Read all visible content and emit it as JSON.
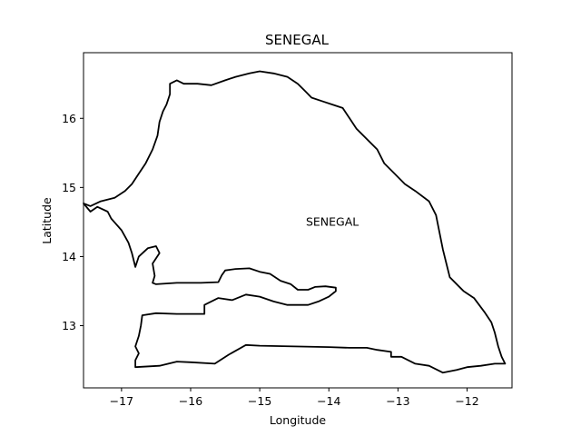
{
  "title": "SENEGAL",
  "map_label": "SENEGAL",
  "xlabel": "Longitude",
  "ylabel": "Latitude",
  "xlim": [
    -17.55,
    -11.35
  ],
  "ylim": [
    12.1,
    16.95
  ],
  "xticks": [
    {
      "value": -17,
      "label": "−17"
    },
    {
      "value": -16,
      "label": "−16"
    },
    {
      "value": -15,
      "label": "−15"
    },
    {
      "value": -14,
      "label": "−14"
    },
    {
      "value": -13,
      "label": "−13"
    },
    {
      "value": -12,
      "label": "−12"
    }
  ],
  "yticks": [
    {
      "value": 13,
      "label": "13"
    },
    {
      "value": 14,
      "label": "14"
    },
    {
      "value": 15,
      "label": "15"
    },
    {
      "value": 16,
      "label": "16"
    }
  ],
  "label_position": {
    "lon": -13.95,
    "lat": 14.5
  },
  "line_color": "#000000",
  "boundaries": {
    "senegal": [
      [
        -17.55,
        14.77
      ],
      [
        -17.45,
        14.73
      ],
      [
        -17.3,
        14.8
      ],
      [
        -17.1,
        14.85
      ],
      [
        -16.95,
        14.95
      ],
      [
        -16.85,
        15.05
      ],
      [
        -16.75,
        15.2
      ],
      [
        -16.65,
        15.35
      ],
      [
        -16.55,
        15.55
      ],
      [
        -16.48,
        15.75
      ],
      [
        -16.45,
        15.95
      ],
      [
        -16.4,
        16.1
      ],
      [
        -16.35,
        16.2
      ],
      [
        -16.3,
        16.35
      ],
      [
        -16.3,
        16.5
      ],
      [
        -16.2,
        16.55
      ],
      [
        -16.1,
        16.5
      ],
      [
        -15.9,
        16.5
      ],
      [
        -15.7,
        16.48
      ],
      [
        -15.5,
        16.55
      ],
      [
        -15.35,
        16.6
      ],
      [
        -15.15,
        16.65
      ],
      [
        -15.0,
        16.68
      ],
      [
        -14.8,
        16.65
      ],
      [
        -14.6,
        16.6
      ],
      [
        -14.45,
        16.5
      ],
      [
        -14.35,
        16.4
      ],
      [
        -14.25,
        16.3
      ],
      [
        -14.1,
        16.25
      ],
      [
        -13.95,
        16.2
      ],
      [
        -13.8,
        16.15
      ],
      [
        -13.7,
        16.0
      ],
      [
        -13.6,
        15.85
      ],
      [
        -13.45,
        15.7
      ],
      [
        -13.3,
        15.55
      ],
      [
        -13.2,
        15.35
      ],
      [
        -13.05,
        15.2
      ],
      [
        -12.9,
        15.05
      ],
      [
        -12.75,
        14.95
      ],
      [
        -12.55,
        14.8
      ],
      [
        -12.45,
        14.6
      ],
      [
        -12.4,
        14.35
      ],
      [
        -12.35,
        14.1
      ],
      [
        -12.3,
        13.9
      ],
      [
        -12.25,
        13.7
      ],
      [
        -12.05,
        13.5
      ],
      [
        -11.9,
        13.4
      ],
      [
        -11.75,
        13.2
      ],
      [
        -11.65,
        13.05
      ],
      [
        -11.6,
        12.9
      ],
      [
        -11.55,
        12.7
      ],
      [
        -11.5,
        12.55
      ],
      [
        -11.45,
        12.45
      ],
      [
        -11.6,
        12.45
      ],
      [
        -11.8,
        12.42
      ],
      [
        -12.0,
        12.4
      ],
      [
        -12.15,
        12.36
      ],
      [
        -12.35,
        12.32
      ],
      [
        -12.55,
        12.42
      ],
      [
        -12.75,
        12.45
      ],
      [
        -12.95,
        12.55
      ],
      [
        -13.1,
        12.55
      ],
      [
        -13.1,
        12.62
      ],
      [
        -13.3,
        12.65
      ],
      [
        -13.45,
        12.68
      ],
      [
        -13.7,
        12.68
      ],
      [
        -14.0,
        12.69
      ],
      [
        -14.5,
        12.7
      ],
      [
        -15.0,
        12.71
      ],
      [
        -15.2,
        12.72
      ],
      [
        -15.45,
        12.58
      ],
      [
        -15.65,
        12.45
      ],
      [
        -16.0,
        12.47
      ],
      [
        -16.2,
        12.48
      ],
      [
        -16.45,
        12.42
      ],
      [
        -16.8,
        12.4
      ],
      [
        -16.8,
        12.5
      ],
      [
        -16.75,
        12.6
      ],
      [
        -16.8,
        12.7
      ],
      [
        -16.75,
        12.85
      ],
      [
        -16.72,
        13.0
      ],
      [
        -16.7,
        13.15
      ],
      [
        -16.5,
        13.18
      ],
      [
        -16.2,
        13.17
      ],
      [
        -15.8,
        13.17
      ],
      [
        -15.8,
        13.3
      ],
      [
        -15.6,
        13.4
      ],
      [
        -15.4,
        13.37
      ],
      [
        -15.2,
        13.45
      ],
      [
        -15.0,
        13.42
      ],
      [
        -14.8,
        13.35
      ],
      [
        -14.6,
        13.3
      ],
      [
        -14.45,
        13.3
      ],
      [
        -14.3,
        13.3
      ],
      [
        -14.15,
        13.35
      ],
      [
        -14.0,
        13.42
      ],
      [
        -13.9,
        13.5
      ],
      [
        -13.9,
        13.55
      ],
      [
        -14.05,
        13.57
      ],
      [
        -14.2,
        13.56
      ],
      [
        -14.3,
        13.52
      ],
      [
        -14.45,
        13.52
      ],
      [
        -14.55,
        13.6
      ],
      [
        -14.7,
        13.65
      ],
      [
        -14.85,
        13.75
      ],
      [
        -15.0,
        13.78
      ],
      [
        -15.15,
        13.83
      ],
      [
        -15.35,
        13.82
      ],
      [
        -15.5,
        13.8
      ],
      [
        -15.55,
        13.73
      ],
      [
        -15.6,
        13.63
      ],
      [
        -15.85,
        13.62
      ],
      [
        -16.2,
        13.62
      ],
      [
        -16.5,
        13.6
      ],
      [
        -16.55,
        13.62
      ],
      [
        -16.52,
        13.72
      ],
      [
        -16.55,
        13.9
      ],
      [
        -16.45,
        14.05
      ],
      [
        -16.5,
        14.15
      ],
      [
        -16.62,
        14.12
      ],
      [
        -16.75,
        14.0
      ],
      [
        -16.8,
        13.85
      ],
      [
        -16.85,
        14.05
      ],
      [
        -16.9,
        14.2
      ],
      [
        -17.0,
        14.38
      ],
      [
        -17.15,
        14.55
      ],
      [
        -17.2,
        14.65
      ],
      [
        -17.35,
        14.72
      ],
      [
        -17.45,
        14.65
      ],
      [
        -17.55,
        14.77
      ]
    ]
  }
}
